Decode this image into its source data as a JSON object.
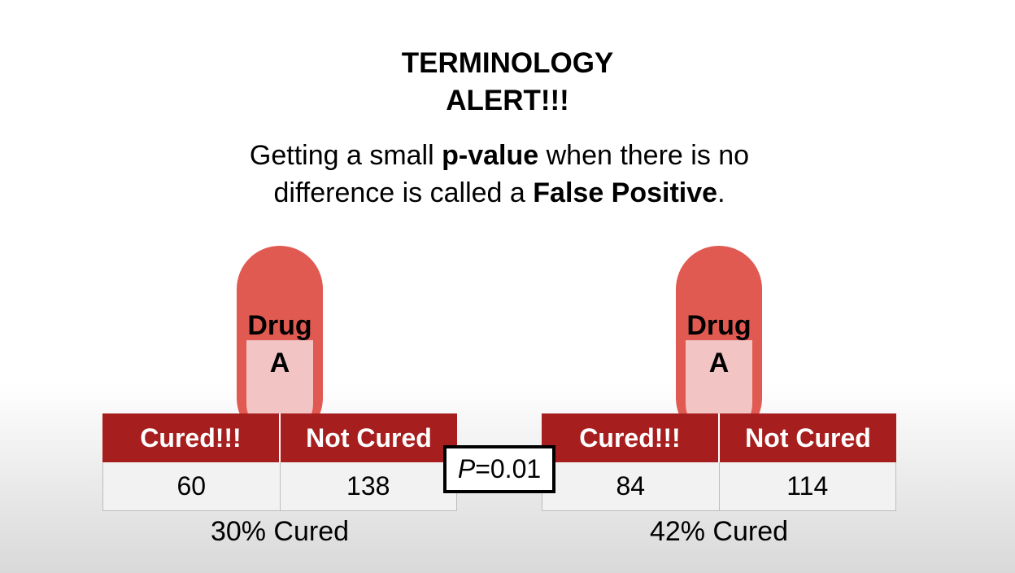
{
  "title": {
    "line1": "TERMINOLOGY",
    "line2": "ALERT!!!"
  },
  "subtitle": {
    "text1": "Getting a small ",
    "bold1": "p-value",
    "text2": " when there is no difference is called a ",
    "bold2": "False Positive",
    "text3": "."
  },
  "groups": [
    {
      "pill": {
        "line1": "Drug",
        "line2": "A"
      },
      "headers": [
        "Cured!!!",
        "Not Cured"
      ],
      "values": [
        "60",
        "138"
      ],
      "summary": "30% Cured"
    },
    {
      "pill": {
        "line1": "Drug",
        "line2": "A"
      },
      "headers": [
        "Cured!!!",
        "Not Cured"
      ],
      "values": [
        "84",
        "114"
      ],
      "summary": "42% Cured"
    }
  ],
  "pvalue": {
    "symbol": "P",
    "rest": "=0.01"
  },
  "colors": {
    "pill": "#e05a52",
    "pill_inner": "#f2c4c4",
    "header": "#a61e1e"
  }
}
